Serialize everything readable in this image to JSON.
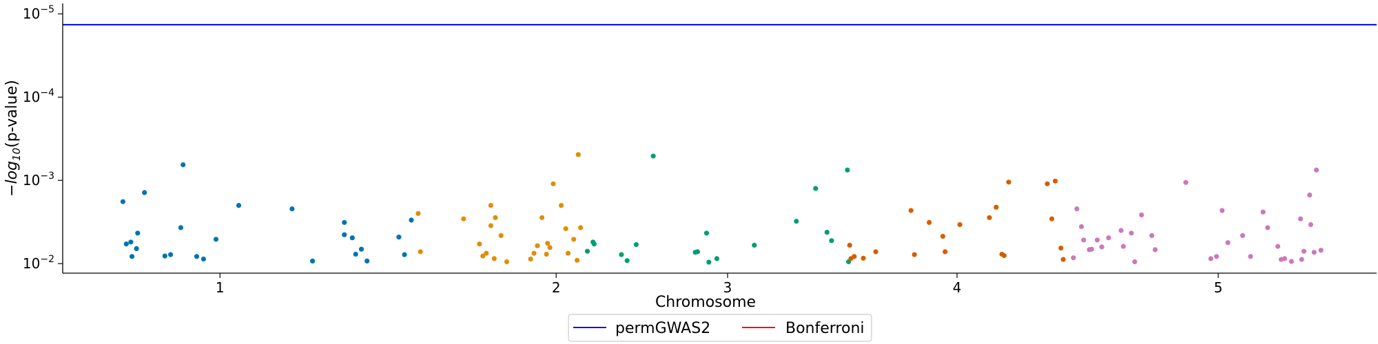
{
  "chart_data": {
    "type": "scatter",
    "title": "",
    "xlabel": "Chromosome",
    "ylabel_main": "−log",
    "ylabel_sub": "10",
    "ylabel_tail": "(p-value)",
    "x_axis": {
      "ticks": [
        {
          "label": "1",
          "value": 138.5
        },
        {
          "label": "2",
          "value": 434.5
        },
        {
          "label": "3",
          "value": 585.5
        },
        {
          "label": "4",
          "value": 787.5
        },
        {
          "label": "5",
          "value": 1017.5
        }
      ],
      "xlim": [
        0,
        1157
      ]
    },
    "y_axis": {
      "scale": "log",
      "inverted": true,
      "ylim": [
        0.013,
        7.5e-06
      ],
      "ticks": [
        {
          "value": 0.01,
          "mantissa": "10",
          "exponent": "−2"
        },
        {
          "value": 0.001,
          "mantissa": "10",
          "exponent": "−3"
        },
        {
          "value": 0.0001,
          "mantissa": "10",
          "exponent": "−4"
        },
        {
          "value": 1e-05,
          "mantissa": "10",
          "exponent": "−5"
        }
      ]
    },
    "thresholds": [
      {
        "name": "permGWAS2",
        "value": 1.35e-05,
        "color": "#0000ff"
      },
      {
        "name": "Bonferroni",
        "value": 5.8e-06,
        "color": "#ff0000"
      }
    ],
    "grid": false,
    "legend": {
      "position": "bottom-center",
      "columns": 2
    },
    "series": [
      {
        "chromosome": "1",
        "color": "#0173b2",
        "points": [
          [
            53,
            0.0018
          ],
          [
            56,
            0.0058
          ],
          [
            60,
            0.0055
          ],
          [
            61,
            0.0082
          ],
          [
            65,
            0.0066
          ],
          [
            66,
            0.0043
          ],
          [
            72,
            0.0014
          ],
          [
            90,
            0.0081
          ],
          [
            95,
            0.0078
          ],
          [
            104,
            0.0037
          ],
          [
            106,
            0.00065
          ],
          [
            118,
            0.0082
          ],
          [
            124,
            0.0088
          ],
          [
            135,
            0.0051
          ],
          [
            155,
            0.002
          ],
          [
            202,
            0.0022
          ],
          [
            220,
            0.0093
          ],
          [
            248,
            0.0032
          ],
          [
            248,
            0.0045
          ],
          [
            255,
            0.0049
          ],
          [
            258,
            0.0077
          ],
          [
            263,
            0.0067
          ],
          [
            268,
            0.0093
          ],
          [
            296,
            0.0048
          ],
          [
            301,
            0.0078
          ],
          [
            307,
            0.003
          ]
        ]
      },
      {
        "chromosome": "2",
        "color": "#de8f05",
        "points": [
          [
            313,
            0.0025
          ],
          [
            315,
            0.0072
          ],
          [
            353,
            0.0029
          ],
          [
            367,
            0.0058
          ],
          [
            370,
            0.0081
          ],
          [
            373,
            0.0075
          ],
          [
            377,
            0.002
          ],
          [
            377,
            0.0035
          ],
          [
            380,
            0.0087
          ],
          [
            381,
            0.0028
          ],
          [
            386,
            0.0046
          ],
          [
            391,
            0.0095
          ],
          [
            412,
            0.0088
          ],
          [
            415,
            0.0075
          ],
          [
            418,
            0.0061
          ],
          [
            422,
            0.0028
          ],
          [
            426,
            0.0077
          ],
          [
            427,
            0.0057
          ],
          [
            429,
            0.0064
          ],
          [
            432,
            0.0011
          ],
          [
            439,
            0.002
          ],
          [
            443,
            0.0038
          ],
          [
            445,
            0.0075
          ],
          [
            450,
            0.0051
          ],
          [
            453,
            0.0091
          ],
          [
            454,
            0.00049
          ],
          [
            456,
            0.0037
          ]
        ]
      },
      {
        "chromosome": "3",
        "color": "#029e73",
        "points": [
          [
            462,
            0.0071
          ],
          [
            467,
            0.0055
          ],
          [
            468,
            0.0058
          ],
          [
            492,
            0.0078
          ],
          [
            497,
            0.0092
          ],
          [
            505,
            0.0059
          ],
          [
            520,
            0.00051
          ],
          [
            557,
            0.0073
          ],
          [
            559,
            0.0072
          ],
          [
            567,
            0.0043
          ],
          [
            569,
            0.0096
          ],
          [
            576,
            0.0087
          ],
          [
            609,
            0.006
          ],
          [
            646,
            0.0031
          ],
          [
            663,
            0.00125
          ],
          [
            673,
            0.0042
          ],
          [
            677,
            0.0053
          ],
          [
            691,
            0.00075
          ],
          [
            692,
            0.0095
          ]
        ]
      },
      {
        "chromosome": "4",
        "color": "#d55e00",
        "points": [
          [
            693,
            0.006
          ],
          [
            694,
            0.0087
          ],
          [
            697,
            0.0082
          ],
          [
            705,
            0.0086
          ],
          [
            716,
            0.0072
          ],
          [
            747,
            0.0023
          ],
          [
            750,
            0.0078
          ],
          [
            763,
            0.0032
          ],
          [
            775,
            0.0047
          ],
          [
            777,
            0.0072
          ],
          [
            790,
            0.0034
          ],
          [
            816,
            0.0028
          ],
          [
            822,
            0.0021
          ],
          [
            827,
            0.0077
          ],
          [
            829,
            0.008
          ],
          [
            833,
            0.00105
          ],
          [
            867,
            0.0011
          ],
          [
            871,
            0.0029
          ],
          [
            874,
            0.00102
          ],
          [
            879,
            0.0065
          ],
          [
            881,
            0.0089
          ]
        ]
      },
      {
        "chromosome": "5",
        "color": "#cc78bc",
        "points": [
          [
            890,
            0.0085
          ],
          [
            893,
            0.0022
          ],
          [
            897,
            0.0036
          ],
          [
            899,
            0.0052
          ],
          [
            904,
            0.0068
          ],
          [
            906,
            0.0067
          ],
          [
            911,
            0.0052
          ],
          [
            915,
            0.0063
          ],
          [
            921,
            0.0049
          ],
          [
            932,
            0.004
          ],
          [
            934,
            0.0062
          ],
          [
            941,
            0.0043
          ],
          [
            944,
            0.0095
          ],
          [
            950,
            0.0026
          ],
          [
            959,
            0.0046
          ],
          [
            962,
            0.0068
          ],
          [
            989,
            0.00106
          ],
          [
            1011,
            0.0087
          ],
          [
            1016,
            0.0082
          ],
          [
            1021,
            0.0023
          ],
          [
            1026,
            0.0056
          ],
          [
            1039,
            0.0046
          ],
          [
            1046,
            0.0082
          ],
          [
            1057,
            0.0024
          ],
          [
            1061,
            0.0037
          ],
          [
            1070,
            0.0062
          ],
          [
            1073,
            0.0089
          ],
          [
            1076,
            0.0087
          ],
          [
            1082,
            0.0094
          ],
          [
            1090,
            0.0029
          ],
          [
            1091,
            0.0089
          ],
          [
            1093,
            0.0071
          ],
          [
            1098,
            0.0015
          ],
          [
            1099,
            0.0034
          ],
          [
            1102,
            0.0073
          ],
          [
            1104,
            0.00075
          ],
          [
            1108,
            0.0069
          ]
        ]
      }
    ]
  }
}
